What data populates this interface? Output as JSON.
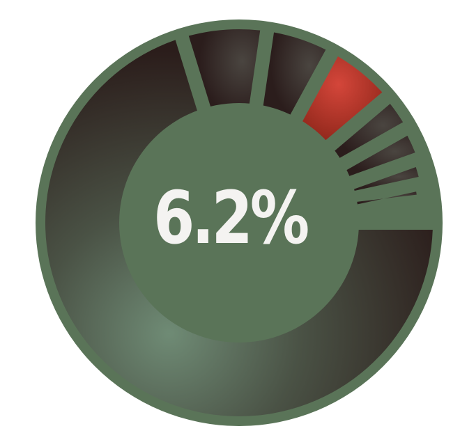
{
  "chart_data": {
    "type": "pie",
    "style": "exploded-donut",
    "center_label": "6.2%",
    "slices": [
      {
        "value": 74.6,
        "highlight": false
      },
      {
        "value": 7.5,
        "highlight": false
      },
      {
        "value": 6.0,
        "highlight": false
      },
      {
        "value": 6.2,
        "highlight": true
      },
      {
        "value": 3.2,
        "highlight": false
      },
      {
        "value": 2.9,
        "highlight": false
      },
      {
        "value": 2.2,
        "highlight": false
      },
      {
        "value": 1.6,
        "highlight": false
      },
      {
        "value": 1.1,
        "highlight": false
      },
      {
        "value": 0.9,
        "highlight": false
      }
    ],
    "colors": {
      "ring": "#5a7458",
      "slice_dark": "#2e2220",
      "slice_light": "#6e8a74",
      "highlight": "#c0392b",
      "highlight_dark": "#7f1d12",
      "label": "#f4f3f1"
    }
  }
}
